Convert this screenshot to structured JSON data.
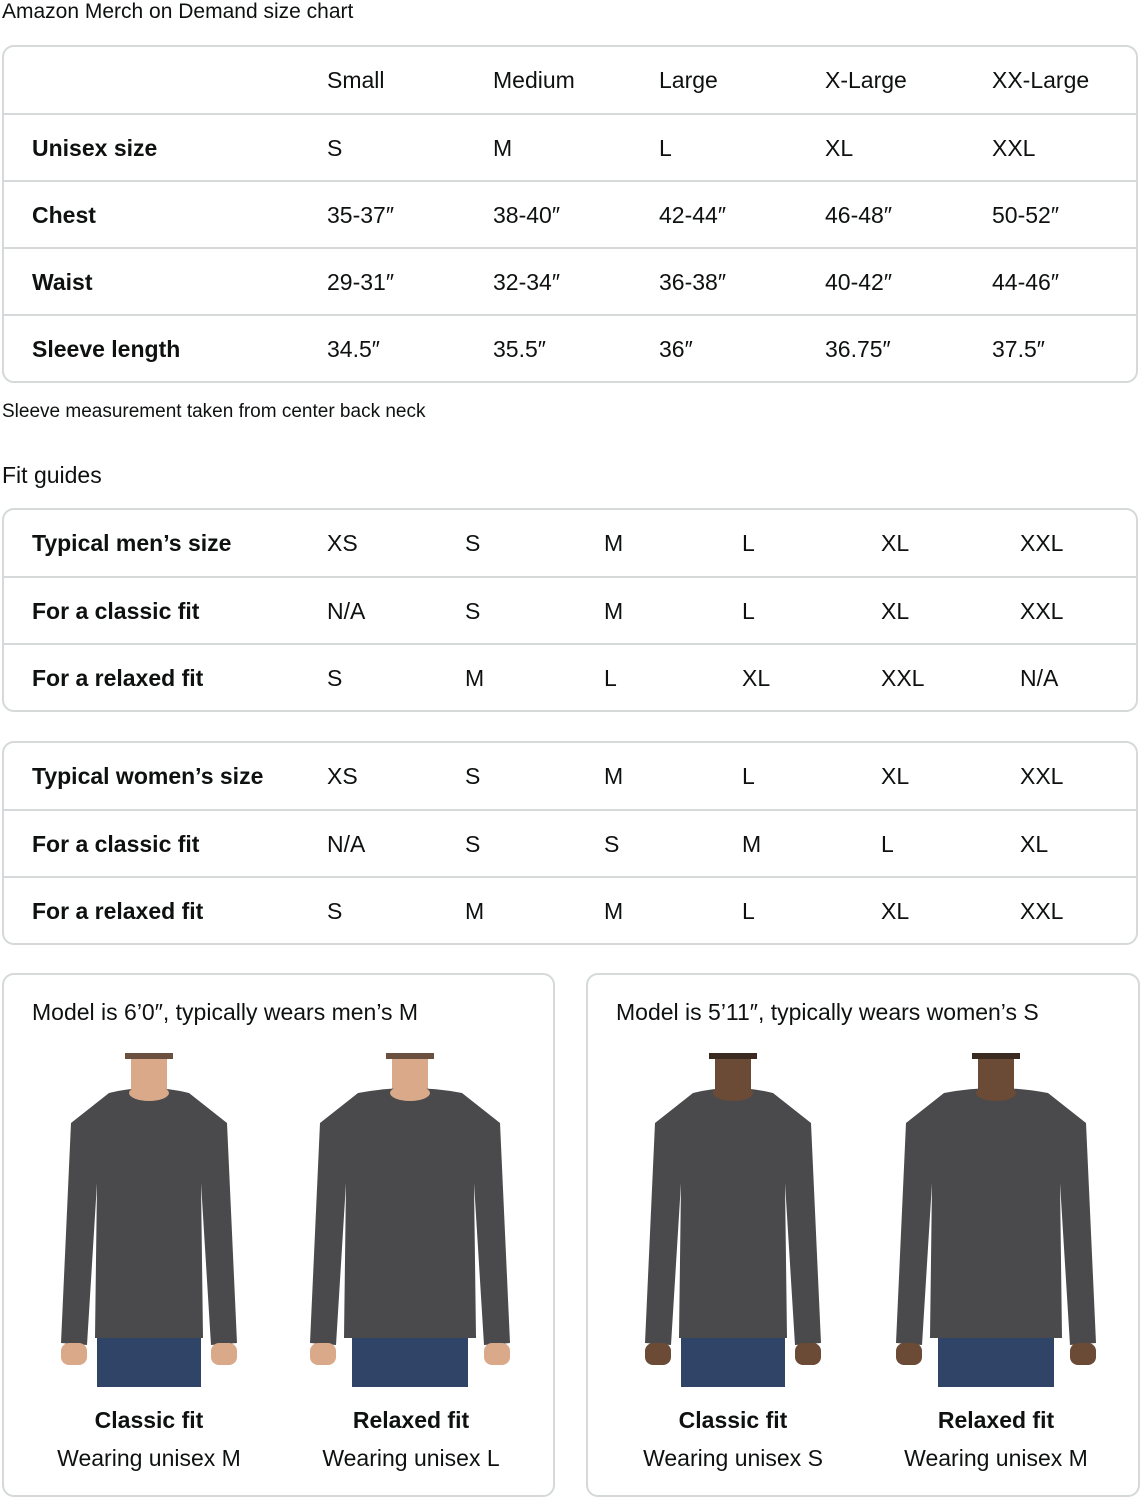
{
  "title": "Amazon Merch on Demand size chart",
  "size_chart": {
    "headers": [
      "",
      "Small",
      "Medium",
      "Large",
      "X-Large",
      "XX-Large"
    ],
    "rows": [
      {
        "label": "Unisex size",
        "values": [
          "S",
          "M",
          "L",
          "XL",
          "XXL"
        ]
      },
      {
        "label": "Chest",
        "values": [
          "35-37″",
          "38-40″",
          "42-44″",
          "46-48″",
          "50-52″"
        ]
      },
      {
        "label": "Waist",
        "values": [
          "29-31″",
          "32-34″",
          "36-38″",
          "40-42″",
          "44-46″"
        ]
      },
      {
        "label": "Sleeve length",
        "values": [
          "34.5″",
          "35.5″",
          "36″",
          "36.75″",
          "37.5″"
        ]
      }
    ]
  },
  "note": "Sleeve measurement taken from center back neck",
  "fit_guides_title": "Fit guides",
  "mens_fit": {
    "rows": [
      {
        "label": "Typical men’s size",
        "values": [
          "XS",
          "S",
          "M",
          "L",
          "XL",
          "XXL"
        ]
      },
      {
        "label": "For a classic fit",
        "values": [
          "N/A",
          "S",
          "M",
          "L",
          "XL",
          "XXL"
        ]
      },
      {
        "label": "For a relaxed fit",
        "values": [
          "S",
          "M",
          "L",
          "XL",
          "XXL",
          "N/A"
        ]
      }
    ]
  },
  "womens_fit": {
    "rows": [
      {
        "label": "Typical women’s size",
        "values": [
          "XS",
          "S",
          "M",
          "L",
          "XL",
          "XXL"
        ]
      },
      {
        "label": "For a classic fit",
        "values": [
          "N/A",
          "S",
          "S",
          "M",
          "L",
          "XL"
        ]
      },
      {
        "label": "For a relaxed fit",
        "values": [
          "S",
          "M",
          "M",
          "L",
          "XL",
          "XXL"
        ]
      }
    ]
  },
  "models": [
    {
      "title": "Model is 6’0″, typically wears men’s M",
      "fits": [
        {
          "name": "Classic fit",
          "wearing": "Wearing unisex M"
        },
        {
          "name": "Relaxed fit",
          "wearing": "Wearing unisex L"
        }
      ]
    },
    {
      "title": "Model is 5’11″, typically wears women’s S",
      "fits": [
        {
          "name": "Classic fit",
          "wearing": "Wearing unisex S"
        },
        {
          "name": "Relaxed fit",
          "wearing": "Wearing unisex M"
        }
      ]
    }
  ],
  "colors": {
    "shirt": "#4a4a4c",
    "jeans": "#2f4466",
    "border": "#d5d9d9"
  }
}
